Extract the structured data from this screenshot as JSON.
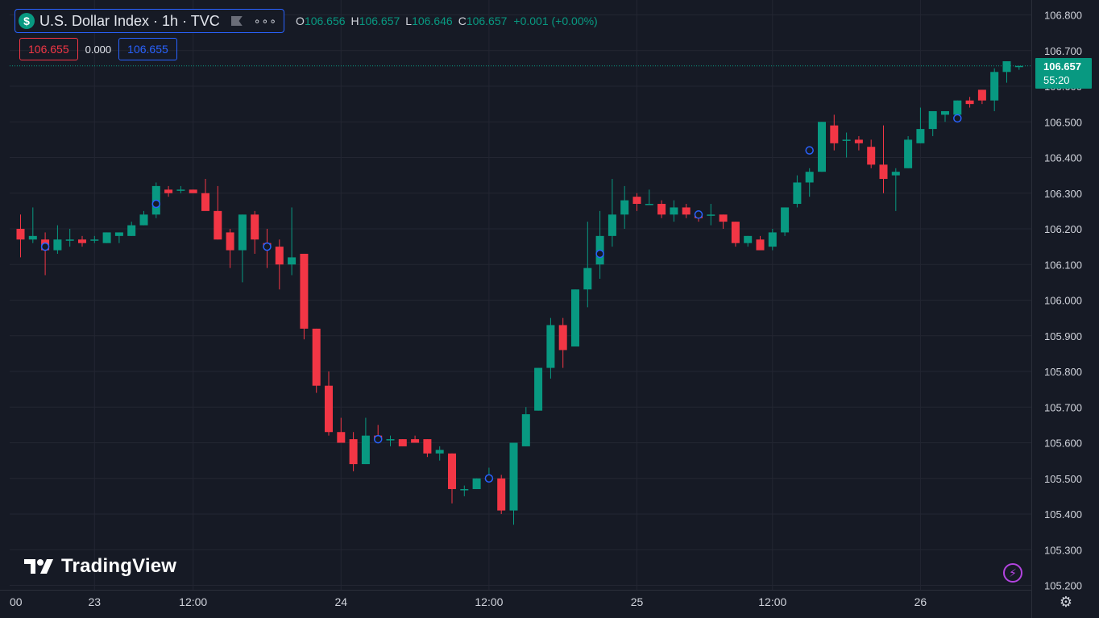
{
  "legend": {
    "symbol_glyph": "$",
    "title": "U.S. Dollar Index · 1h · TVC",
    "ohlc": {
      "o_label": "O",
      "o": "106.656",
      "h_label": "H",
      "h": "106.657",
      "l_label": "L",
      "l": "106.646",
      "c_label": "C",
      "c": "106.657",
      "change": "+0.001 (+0.00%)"
    },
    "sell_price": "106.655",
    "spread": "0.000",
    "buy_price": "106.655"
  },
  "last_price": {
    "price": "106.657",
    "countdown": "55:20"
  },
  "watermark": "TradingView",
  "icons": [
    "dollar-icon",
    "flag-icon",
    "more-dots-icon",
    "lightning-icon",
    "settings-gear-icon",
    "tradingview-logo-icon"
  ],
  "colors": {
    "background": "#161a25",
    "up": "#089981",
    "down": "#f23645",
    "grid": "#232632",
    "accent": "#2962ff",
    "alert": "#b344e0"
  },
  "chart_data": {
    "type": "candlestick",
    "title": "U.S. Dollar Index · 1h · TVC",
    "interval": "1h",
    "y_axis": {
      "position": "right",
      "range": [
        105.2,
        106.8
      ],
      "ticks": [
        "106.800",
        "106.700",
        "106.600",
        "106.500",
        "106.400",
        "106.300",
        "106.200",
        "106.100",
        "106.000",
        "105.900",
        "105.800",
        "105.700",
        "105.600",
        "105.500",
        "105.400",
        "105.300",
        "105.200"
      ]
    },
    "x_axis": {
      "labels": [
        {
          "text": "00",
          "index": -0.5
        },
        {
          "text": "23",
          "index": 6
        },
        {
          "text": "12:00",
          "index": 14
        },
        {
          "text": "24",
          "index": 26
        },
        {
          "text": "12:00",
          "index": 38
        },
        {
          "text": "25",
          "index": 50
        },
        {
          "text": "12:00",
          "index": 61
        },
        {
          "text": "26",
          "index": 73
        }
      ]
    },
    "grid": true,
    "candles": [
      {
        "o": 106.2,
        "h": 106.24,
        "l": 106.12,
        "c": 106.17
      },
      {
        "o": 106.17,
        "h": 106.26,
        "l": 106.16,
        "c": 106.18
      },
      {
        "o": 106.17,
        "h": 106.19,
        "l": 106.07,
        "c": 106.14
      },
      {
        "o": 106.14,
        "h": 106.21,
        "l": 106.13,
        "c": 106.17
      },
      {
        "o": 106.17,
        "h": 106.2,
        "l": 106.15,
        "c": 106.17
      },
      {
        "o": 106.17,
        "h": 106.18,
        "l": 106.15,
        "c": 106.16
      },
      {
        "o": 106.17,
        "h": 106.18,
        "l": 106.16,
        "c": 106.17
      },
      {
        "o": 106.16,
        "h": 106.19,
        "l": 106.16,
        "c": 106.19
      },
      {
        "o": 106.18,
        "h": 106.19,
        "l": 106.16,
        "c": 106.19
      },
      {
        "o": 106.18,
        "h": 106.22,
        "l": 106.18,
        "c": 106.21
      },
      {
        "o": 106.21,
        "h": 106.25,
        "l": 106.21,
        "c": 106.24
      },
      {
        "o": 106.24,
        "h": 106.33,
        "l": 106.23,
        "c": 106.32
      },
      {
        "o": 106.31,
        "h": 106.32,
        "l": 106.29,
        "c": 106.3
      },
      {
        "o": 106.31,
        "h": 106.32,
        "l": 106.3,
        "c": 106.31
      },
      {
        "o": 106.31,
        "h": 106.31,
        "l": 106.3,
        "c": 106.3
      },
      {
        "o": 106.3,
        "h": 106.34,
        "l": 106.26,
        "c": 106.25
      },
      {
        "o": 106.25,
        "h": 106.32,
        "l": 106.17,
        "c": 106.17
      },
      {
        "o": 106.19,
        "h": 106.2,
        "l": 106.09,
        "c": 106.14
      },
      {
        "o": 106.14,
        "h": 106.24,
        "l": 106.05,
        "c": 106.24
      },
      {
        "o": 106.24,
        "h": 106.25,
        "l": 106.13,
        "c": 106.17
      },
      {
        "o": 106.16,
        "h": 106.2,
        "l": 106.09,
        "c": 106.15
      },
      {
        "o": 106.15,
        "h": 106.17,
        "l": 106.03,
        "c": 106.1
      },
      {
        "o": 106.1,
        "h": 106.26,
        "l": 106.07,
        "c": 106.12
      },
      {
        "o": 106.13,
        "h": 106.13,
        "l": 105.89,
        "c": 105.92
      },
      {
        "o": 105.92,
        "h": 105.92,
        "l": 105.74,
        "c": 105.76
      },
      {
        "o": 105.76,
        "h": 105.8,
        "l": 105.62,
        "c": 105.63
      },
      {
        "o": 105.63,
        "h": 105.67,
        "l": 105.6,
        "c": 105.6
      },
      {
        "o": 105.61,
        "h": 105.63,
        "l": 105.52,
        "c": 105.54
      },
      {
        "o": 105.54,
        "h": 105.67,
        "l": 105.54,
        "c": 105.62
      },
      {
        "o": 105.62,
        "h": 105.65,
        "l": 105.6,
        "c": 105.61
      },
      {
        "o": 105.61,
        "h": 105.62,
        "l": 105.59,
        "c": 105.61
      },
      {
        "o": 105.61,
        "h": 105.61,
        "l": 105.59,
        "c": 105.59
      },
      {
        "o": 105.61,
        "h": 105.62,
        "l": 105.6,
        "c": 105.6
      },
      {
        "o": 105.61,
        "h": 105.61,
        "l": 105.56,
        "c": 105.57
      },
      {
        "o": 105.57,
        "h": 105.59,
        "l": 105.55,
        "c": 105.58
      },
      {
        "o": 105.57,
        "h": 105.57,
        "l": 105.43,
        "c": 105.47
      },
      {
        "o": 105.47,
        "h": 105.48,
        "l": 105.45,
        "c": 105.47
      },
      {
        "o": 105.47,
        "h": 105.5,
        "l": 105.47,
        "c": 105.5
      },
      {
        "o": 105.5,
        "h": 105.53,
        "l": 105.5,
        "c": 105.5
      },
      {
        "o": 105.5,
        "h": 105.51,
        "l": 105.4,
        "c": 105.41
      },
      {
        "o": 105.41,
        "h": 105.6,
        "l": 105.37,
        "c": 105.6
      },
      {
        "o": 105.59,
        "h": 105.7,
        "l": 105.59,
        "c": 105.68
      },
      {
        "o": 105.69,
        "h": 105.81,
        "l": 105.69,
        "c": 105.81
      },
      {
        "o": 105.81,
        "h": 105.95,
        "l": 105.78,
        "c": 105.93
      },
      {
        "o": 105.93,
        "h": 105.95,
        "l": 105.81,
        "c": 105.86
      },
      {
        "o": 105.87,
        "h": 106.03,
        "l": 105.87,
        "c": 106.03
      },
      {
        "o": 106.03,
        "h": 106.22,
        "l": 105.98,
        "c": 106.09
      },
      {
        "o": 106.1,
        "h": 106.25,
        "l": 106.06,
        "c": 106.18
      },
      {
        "o": 106.18,
        "h": 106.34,
        "l": 106.15,
        "c": 106.24
      },
      {
        "o": 106.24,
        "h": 106.32,
        "l": 106.2,
        "c": 106.28
      },
      {
        "o": 106.29,
        "h": 106.3,
        "l": 106.25,
        "c": 106.27
      },
      {
        "o": 106.27,
        "h": 106.31,
        "l": 106.27,
        "c": 106.27
      },
      {
        "o": 106.27,
        "h": 106.28,
        "l": 106.23,
        "c": 106.24
      },
      {
        "o": 106.24,
        "h": 106.28,
        "l": 106.22,
        "c": 106.26
      },
      {
        "o": 106.26,
        "h": 106.27,
        "l": 106.23,
        "c": 106.24
      },
      {
        "o": 106.24,
        "h": 106.24,
        "l": 106.22,
        "c": 106.23
      },
      {
        "o": 106.24,
        "h": 106.27,
        "l": 106.21,
        "c": 106.24
      },
      {
        "o": 106.24,
        "h": 106.24,
        "l": 106.2,
        "c": 106.22
      },
      {
        "o": 106.22,
        "h": 106.22,
        "l": 106.15,
        "c": 106.16
      },
      {
        "o": 106.16,
        "h": 106.18,
        "l": 106.15,
        "c": 106.18
      },
      {
        "o": 106.17,
        "h": 106.18,
        "l": 106.14,
        "c": 106.14
      },
      {
        "o": 106.15,
        "h": 106.2,
        "l": 106.14,
        "c": 106.19
      },
      {
        "o": 106.19,
        "h": 106.26,
        "l": 106.18,
        "c": 106.26
      },
      {
        "o": 106.27,
        "h": 106.35,
        "l": 106.26,
        "c": 106.33
      },
      {
        "o": 106.33,
        "h": 106.37,
        "l": 106.29,
        "c": 106.36
      },
      {
        "o": 106.36,
        "h": 106.5,
        "l": 106.36,
        "c": 106.5
      },
      {
        "o": 106.49,
        "h": 106.52,
        "l": 106.42,
        "c": 106.44
      },
      {
        "o": 106.45,
        "h": 106.47,
        "l": 106.4,
        "c": 106.45
      },
      {
        "o": 106.45,
        "h": 106.46,
        "l": 106.42,
        "c": 106.44
      },
      {
        "o": 106.43,
        "h": 106.45,
        "l": 106.37,
        "c": 106.38
      },
      {
        "o": 106.38,
        "h": 106.49,
        "l": 106.3,
        "c": 106.34
      },
      {
        "o": 106.35,
        "h": 106.37,
        "l": 106.25,
        "c": 106.36
      },
      {
        "o": 106.37,
        "h": 106.46,
        "l": 106.37,
        "c": 106.45
      },
      {
        "o": 106.44,
        "h": 106.54,
        "l": 106.44,
        "c": 106.48
      },
      {
        "o": 106.48,
        "h": 106.53,
        "l": 106.46,
        "c": 106.53
      },
      {
        "o": 106.52,
        "h": 106.53,
        "l": 106.5,
        "c": 106.53
      },
      {
        "o": 106.52,
        "h": 106.56,
        "l": 106.51,
        "c": 106.56
      },
      {
        "o": 106.56,
        "h": 106.57,
        "l": 106.54,
        "c": 106.55
      },
      {
        "o": 106.59,
        "h": 106.59,
        "l": 106.55,
        "c": 106.56
      },
      {
        "o": 106.56,
        "h": 106.65,
        "l": 106.53,
        "c": 106.64
      },
      {
        "o": 106.64,
        "h": 106.67,
        "l": 106.61,
        "c": 106.67
      },
      {
        "o": 106.656,
        "h": 106.657,
        "l": 106.646,
        "c": 106.657
      }
    ],
    "event_markers": [
      {
        "index": 2,
        "price": 106.15
      },
      {
        "index": 11,
        "price": 106.27
      },
      {
        "index": 20,
        "price": 106.15
      },
      {
        "index": 29,
        "price": 105.61
      },
      {
        "index": 38,
        "price": 105.5
      },
      {
        "index": 47,
        "price": 106.13
      },
      {
        "index": 55,
        "price": 106.24
      },
      {
        "index": 64,
        "price": 106.42
      },
      {
        "index": 76,
        "price": 106.51
      }
    ],
    "last_price_line": 106.657
  }
}
